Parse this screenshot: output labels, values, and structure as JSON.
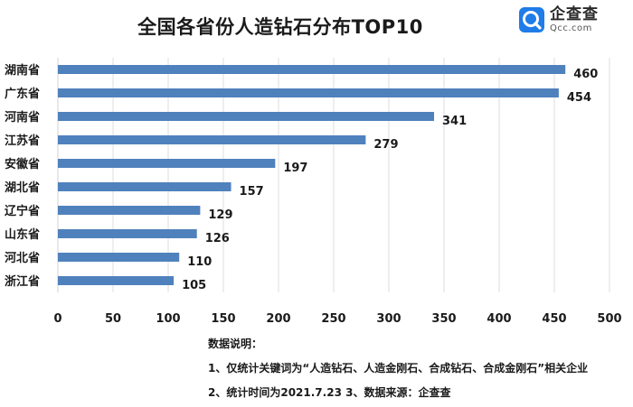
{
  "title": "全国各省份人造钻石分布TOP10",
  "logo": {
    "name": "企查查",
    "domain": "Qcc.com",
    "icon": "qcc-logo-icon",
    "accent_color": "#1f7ce8"
  },
  "chart_data": {
    "type": "bar",
    "orientation": "horizontal",
    "title": "全国各省份人造钻石分布TOP10",
    "categories": [
      "湖南省",
      "广东省",
      "河南省",
      "江苏省",
      "安徽省",
      "湖北省",
      "辽宁省",
      "山东省",
      "河北省",
      "浙江省"
    ],
    "values": [
      460,
      454,
      341,
      279,
      197,
      157,
      129,
      126,
      110,
      105
    ],
    "xlim": [
      0,
      500
    ],
    "xticks": [
      "0",
      "50",
      "100",
      "150",
      "200",
      "250",
      "300",
      "350",
      "400",
      "450",
      "500"
    ],
    "grid": "vertical",
    "bar_color": "#4f81bd",
    "legend": "none",
    "data_labels": true
  },
  "notes": {
    "heading": "数据说明：",
    "line1": "1、仅统计关键词为“人造钻石、人造金刚石、合成钻石、合成金刚石”相关企业",
    "line2": "2、统计时间为2021.7.23  3、数据来源：企查查"
  }
}
